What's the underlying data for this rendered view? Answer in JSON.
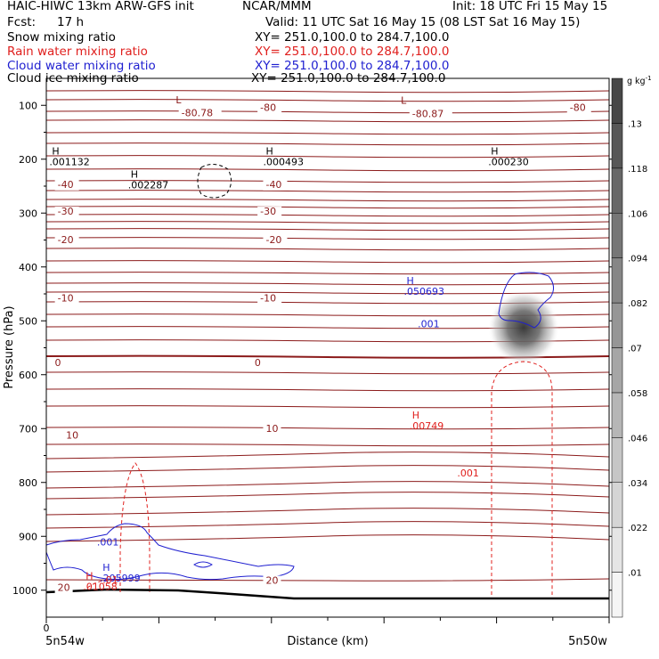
{
  "header": {
    "model_title": "HAIC-HIWC 13km ARW-GFS init",
    "org": "NCAR/MMM",
    "init": "Init: 18 UTC Fri 15 May 15",
    "fcst_label": "Fcst:",
    "fcst_value": "17 h",
    "valid": "Valid: 11 UTC Sat 16 May 15 (08 LST Sat 16 May 15)"
  },
  "fields": [
    {
      "name": "Snow mixing ratio",
      "xy": "XY= 251.0,100.0 to 284.7,100.0",
      "color": "#000000"
    },
    {
      "name": "Rain water mixing ratio",
      "xy": "XY= 251.0,100.0 to 284.7,100.0",
      "color": "#e0201e"
    },
    {
      "name": "Cloud water mixing ratio",
      "xy": "XY= 251.0,100.0 to 284.7,100.0",
      "color": "#1f1fd0"
    },
    {
      "name": "Cloud ice mixing ratio",
      "xy": "XY= 251.0,100.0 to 284.7,100.0",
      "color": "#000000"
    }
  ],
  "chart_data": {
    "type": "cross-section",
    "ylabel": "Pressure (hPa)",
    "xlabel": "Distance (km)",
    "y_ticks": [
      100,
      200,
      300,
      400,
      500,
      600,
      700,
      800,
      900,
      1000
    ],
    "y_range": [
      50,
      1050
    ],
    "x_range": [
      0,
      10
    ],
    "x_zero_label": "0",
    "x_start_label": "5n54w",
    "x_end_label": "5n50w",
    "colorbar": {
      "unit": "g kg",
      "unit_sup": "-1",
      "levels": [
        ".01",
        ".022",
        ".034",
        ".046",
        ".058",
        ".07",
        ".082",
        ".094",
        ".106",
        ".118",
        ".13"
      ]
    },
    "temperature_isotherms": [
      {
        "label": "-80",
        "x": 3.8,
        "y": 110
      },
      {
        "label": "-80",
        "x": 9.3,
        "y": 110
      },
      {
        "label": "-80.78",
        "x": 2.4,
        "y": 120
      },
      {
        "label": "-80.87",
        "x": 6.5,
        "y": 122
      },
      {
        "label": "-40",
        "x": 0.2,
        "y": 253
      },
      {
        "label": "-40",
        "x": 3.9,
        "y": 253
      },
      {
        "label": "-30",
        "x": 0.2,
        "y": 303
      },
      {
        "label": "-30",
        "x": 3.8,
        "y": 303
      },
      {
        "label": "-20",
        "x": 0.2,
        "y": 356
      },
      {
        "label": "-20",
        "x": 3.9,
        "y": 356
      },
      {
        "label": "-10",
        "x": 0.2,
        "y": 464
      },
      {
        "label": "-10",
        "x": 3.8,
        "y": 464
      },
      {
        "label": "0",
        "x": 0.15,
        "y": 584
      },
      {
        "label": "0",
        "x": 3.7,
        "y": 584
      },
      {
        "label": "10",
        "x": 0.35,
        "y": 719
      },
      {
        "label": "10",
        "x": 3.9,
        "y": 706
      },
      {
        "label": "20",
        "x": 0.2,
        "y": 1001
      },
      {
        "label": "20",
        "x": 3.9,
        "y": 988
      }
    ],
    "highs_lows": [
      {
        "kind": "L",
        "x": 2.3,
        "y": 96,
        "value": "",
        "color": "#8b1a1a"
      },
      {
        "kind": "L",
        "x": 6.3,
        "y": 97,
        "value": "",
        "color": "#8b1a1a"
      },
      {
        "kind": "H",
        "x": 0.1,
        "y": 191,
        "value": ".001132",
        "color": "#000000"
      },
      {
        "kind": "H",
        "x": 3.9,
        "y": 191,
        "value": ".000493",
        "color": "#000000"
      },
      {
        "kind": "H",
        "x": 7.9,
        "y": 191,
        "value": ".000230",
        "color": "#000000"
      },
      {
        "kind": "H",
        "x": 1.5,
        "y": 234,
        "value": ".002287",
        "color": "#000000"
      },
      {
        "kind": "H",
        "x": 6.4,
        "y": 432,
        "value": ".050693",
        "color": "#1f1fd0"
      },
      {
        "kind": "H",
        "x": 6.5,
        "y": 681,
        "value": ".00749",
        "color": "#e0201e"
      },
      {
        "kind": "H",
        "x": 1.0,
        "y": 964,
        "value": ".205999",
        "color": "#1f1fd0"
      },
      {
        "kind": "H",
        "x": 0.7,
        "y": 980,
        "value": ".01058",
        "color": "#e0201e"
      }
    ],
    "contour_labels": [
      {
        "label": ".001",
        "x": 6.6,
        "y": 512,
        "color": "#1f1fd0"
      },
      {
        "label": ".001",
        "x": 7.3,
        "y": 789,
        "color": "#e0201e"
      },
      {
        "label": ".001",
        "x": 0.9,
        "y": 917,
        "color": "#1f1fd0"
      },
      {
        "label": ".01",
        "x": 1.0,
        "y": 987,
        "color": "#e0201e"
      }
    ]
  }
}
